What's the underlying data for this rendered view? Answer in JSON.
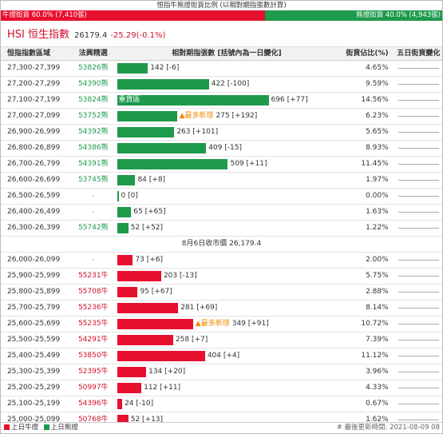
{
  "header": {
    "title": "恒指牛熊證街貨比例 (以相對期指張數計算)",
    "bull_total": "牛證街貨 60.0% (7,410張)",
    "bear_total": "熊證街貨 40.0% (4,943張)"
  },
  "index": {
    "name": "HSI 恒生指數",
    "price": "26179.4",
    "change": "-25.29(-0.1%)"
  },
  "table": {
    "columns": [
      "恒指指數區域",
      "法興精選",
      "相對期指張數 [括號內為一日變化]",
      "街貨佔比(%)",
      "五日街貨變化"
    ],
    "bear_rows": [
      {
        "range": "27,300-27,399",
        "product": "53826熊",
        "quantity": "142 [-6]",
        "share": "4.65%"
      },
      {
        "range": "27,200-27,299",
        "product": "54390熊",
        "quantity": "422 [-100]",
        "share": "9.59%"
      },
      {
        "range": "27,100-27,199",
        "product": "53824熊",
        "tag": "重貨區",
        "quantity": "696 [+77]",
        "share": "14.56%"
      },
      {
        "range": "27,000-27,099",
        "product": "53752熊",
        "tag": "▲最多新增",
        "quantity": "275 [+192]",
        "share": "6.23%"
      },
      {
        "range": "26,900-26,999",
        "product": "54392熊",
        "quantity": "263 [+101]",
        "share": "5.65%"
      },
      {
        "range": "26,800-26,899",
        "product": "54386熊",
        "quantity": "409 [-15]",
        "share": "8.93%"
      },
      {
        "range": "26,700-26,799",
        "product": "54391熊",
        "quantity": "509 [+11]",
        "share": "11.45%"
      },
      {
        "range": "26,600-26,699",
        "product": "53745熊",
        "quantity": "84 [+8]",
        "share": "1.97%"
      },
      {
        "range": "26,500-26,599",
        "product": "-",
        "quantity": "0 [0]",
        "share": "0.00%"
      },
      {
        "range": "26,400-26,499",
        "product": "-",
        "quantity": "65 [+65]",
        "share": "1.63%"
      },
      {
        "range": "26,300-26,399",
        "product": "55742熊",
        "quantity": "52 [+52]",
        "share": "1.22%"
      }
    ],
    "separator": "8月6日收市價 26,179.4",
    "bull_rows": [
      {
        "range": "26,000-26,099",
        "product": "-",
        "quantity": "73 [+6]",
        "share": "2.00%"
      },
      {
        "range": "25,900-25,999",
        "product": "55231牛",
        "quantity": "203 [-13]",
        "share": "5.75%"
      },
      {
        "range": "25,800-25,899",
        "product": "55708牛",
        "quantity": "95 [+67]",
        "share": "2.88%"
      },
      {
        "range": "25,700-25,799",
        "product": "55236牛",
        "quantity": "281 [+69]",
        "share": "8.14%"
      },
      {
        "range": "25,600-25,699",
        "product": "55235牛",
        "tag": "▲最多新增",
        "quantity": "349 [+91]",
        "share": "10.72%"
      },
      {
        "range": "25,500-25,599",
        "product": "54291牛",
        "quantity": "258 [+7]",
        "share": "7.39%"
      },
      {
        "range": "25,400-25,499",
        "product": "53850牛",
        "quantity": "404 [+4]",
        "share": "11.12%"
      },
      {
        "range": "25,300-25,399",
        "product": "52395牛",
        "quantity": "134 [+20]",
        "share": "3.96%"
      },
      {
        "range": "25,200-25,299",
        "product": "50997牛",
        "quantity": "112 [+11]",
        "share": "4.33%"
      },
      {
        "range": "25,100-25,199",
        "product": "54396牛",
        "quantity": "24 [-10]",
        "share": "0.67%"
      },
      {
        "range": "25,000-25,099",
        "product": "50768牛",
        "quantity": "52 [+13]",
        "share": "1.62%"
      }
    ]
  },
  "footer": {
    "legend": [
      "上日牛證",
      "上日熊證"
    ],
    "updated": "# 最後更新時間: 2021-08-09 08"
  }
}
